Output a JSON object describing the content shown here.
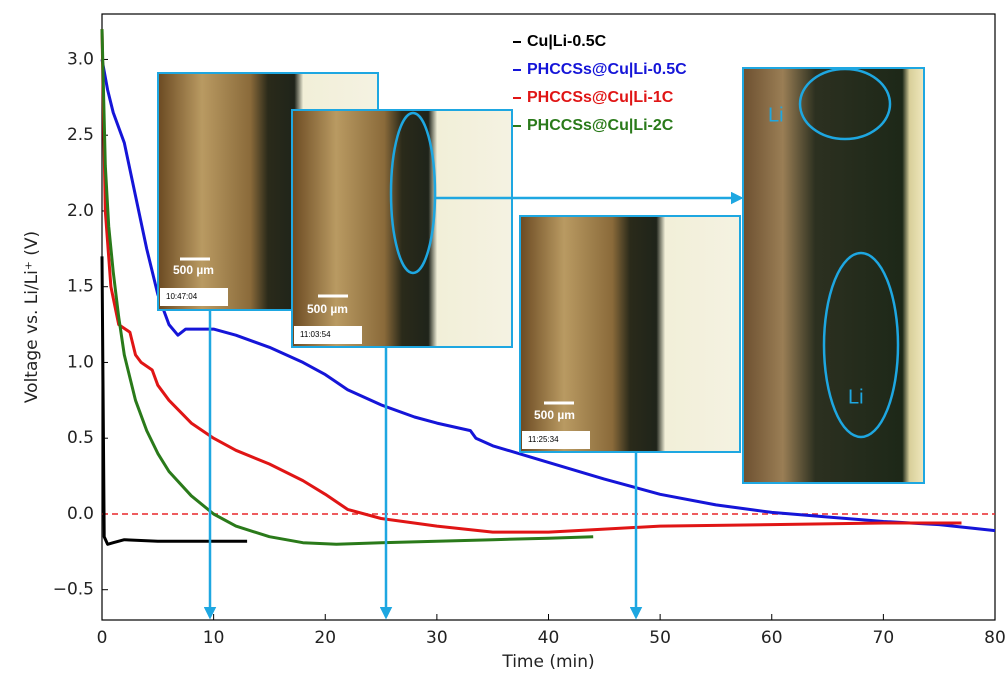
{
  "chart_data": {
    "type": "line",
    "x_label": "Time (min)",
    "y_label": "Voltage vs. Li/Li⁺ (V)",
    "xlim": [
      0,
      80
    ],
    "ylim": [
      -0.7,
      3.3
    ],
    "xticks": [
      0,
      10,
      20,
      30,
      40,
      50,
      60,
      70,
      80
    ],
    "yticks": [
      {
        "value": -0.5,
        "label": "−0.5"
      },
      {
        "value": 0,
        "label": "0.0"
      },
      {
        "value": 0.5,
        "label": "0.5"
      },
      {
        "value": 1,
        "label": "1.0"
      },
      {
        "value": 1.5,
        "label": "1.5"
      },
      {
        "value": 2,
        "label": "2.0"
      },
      {
        "value": 2.5,
        "label": "2.5"
      },
      {
        "value": 3,
        "label": "3.0"
      }
    ],
    "grid": false,
    "reference_line": {
      "value": 0,
      "color": "#e8262a",
      "dashed": true
    },
    "series": [
      {
        "name": "Cu|Li-0.5C",
        "color": "#000000",
        "x": [
          0,
          0.2,
          0.5,
          1,
          2,
          5,
          13
        ],
        "values": [
          1.7,
          -0.15,
          -0.2,
          -0.19,
          -0.17,
          -0.18,
          -0.18
        ]
      },
      {
        "name": "PHCCSs@Cu|Li-0.5C",
        "color": "#1515d8",
        "x": [
          0,
          0.5,
          1,
          2,
          3,
          4,
          5,
          6,
          6.8,
          7.5,
          10,
          12,
          15,
          18,
          20,
          22,
          25,
          28,
          30,
          33,
          33.5,
          35,
          40,
          45,
          50,
          55,
          60,
          65,
          70,
          75,
          80
        ],
        "values": [
          3.0,
          2.8,
          2.65,
          2.45,
          2.1,
          1.75,
          1.45,
          1.25,
          1.18,
          1.22,
          1.22,
          1.18,
          1.1,
          1.0,
          0.92,
          0.82,
          0.72,
          0.64,
          0.6,
          0.55,
          0.5,
          0.45,
          0.34,
          0.23,
          0.13,
          0.06,
          0.01,
          -0.02,
          -0.05,
          -0.07,
          -0.11
        ]
      },
      {
        "name": "PHCCSs@Cu|Li-1C",
        "color": "#e01515",
        "x": [
          0,
          0.3,
          0.8,
          1.5,
          2.5,
          3,
          3.5,
          4.5,
          5,
          6,
          8,
          10,
          12,
          15,
          18,
          20,
          22,
          25,
          30,
          35,
          40,
          45,
          50,
          60,
          70,
          77
        ],
        "values": [
          3.2,
          2.0,
          1.5,
          1.25,
          1.2,
          1.05,
          1.0,
          0.95,
          0.85,
          0.75,
          0.6,
          0.5,
          0.42,
          0.33,
          0.22,
          0.13,
          0.03,
          -0.03,
          -0.08,
          -0.12,
          -0.12,
          -0.1,
          -0.08,
          -0.07,
          -0.06,
          -0.06
        ]
      },
      {
        "name": "PHCCSs@Cu|Li-2C",
        "color": "#2a7a1a",
        "x": [
          0,
          0.3,
          0.6,
          1,
          1.5,
          2,
          3,
          4,
          5,
          6,
          8,
          10,
          12,
          15,
          18,
          21,
          25,
          30,
          35,
          40,
          44
        ],
        "values": [
          3.2,
          2.3,
          1.9,
          1.6,
          1.3,
          1.05,
          0.75,
          0.55,
          0.4,
          0.28,
          0.12,
          0.0,
          -0.08,
          -0.15,
          -0.19,
          -0.2,
          -0.19,
          -0.18,
          -0.17,
          -0.16,
          -0.15
        ]
      }
    ],
    "insets": [
      {
        "scale_bar": "500 µm",
        "timestamp": "10:47:04"
      },
      {
        "scale_bar": "500 µm",
        "timestamp": "11:03:54"
      },
      {
        "scale_bar": "500 µm",
        "timestamp": "11:25:34"
      }
    ],
    "zoom_labels": [
      "Li",
      "Li"
    ]
  }
}
